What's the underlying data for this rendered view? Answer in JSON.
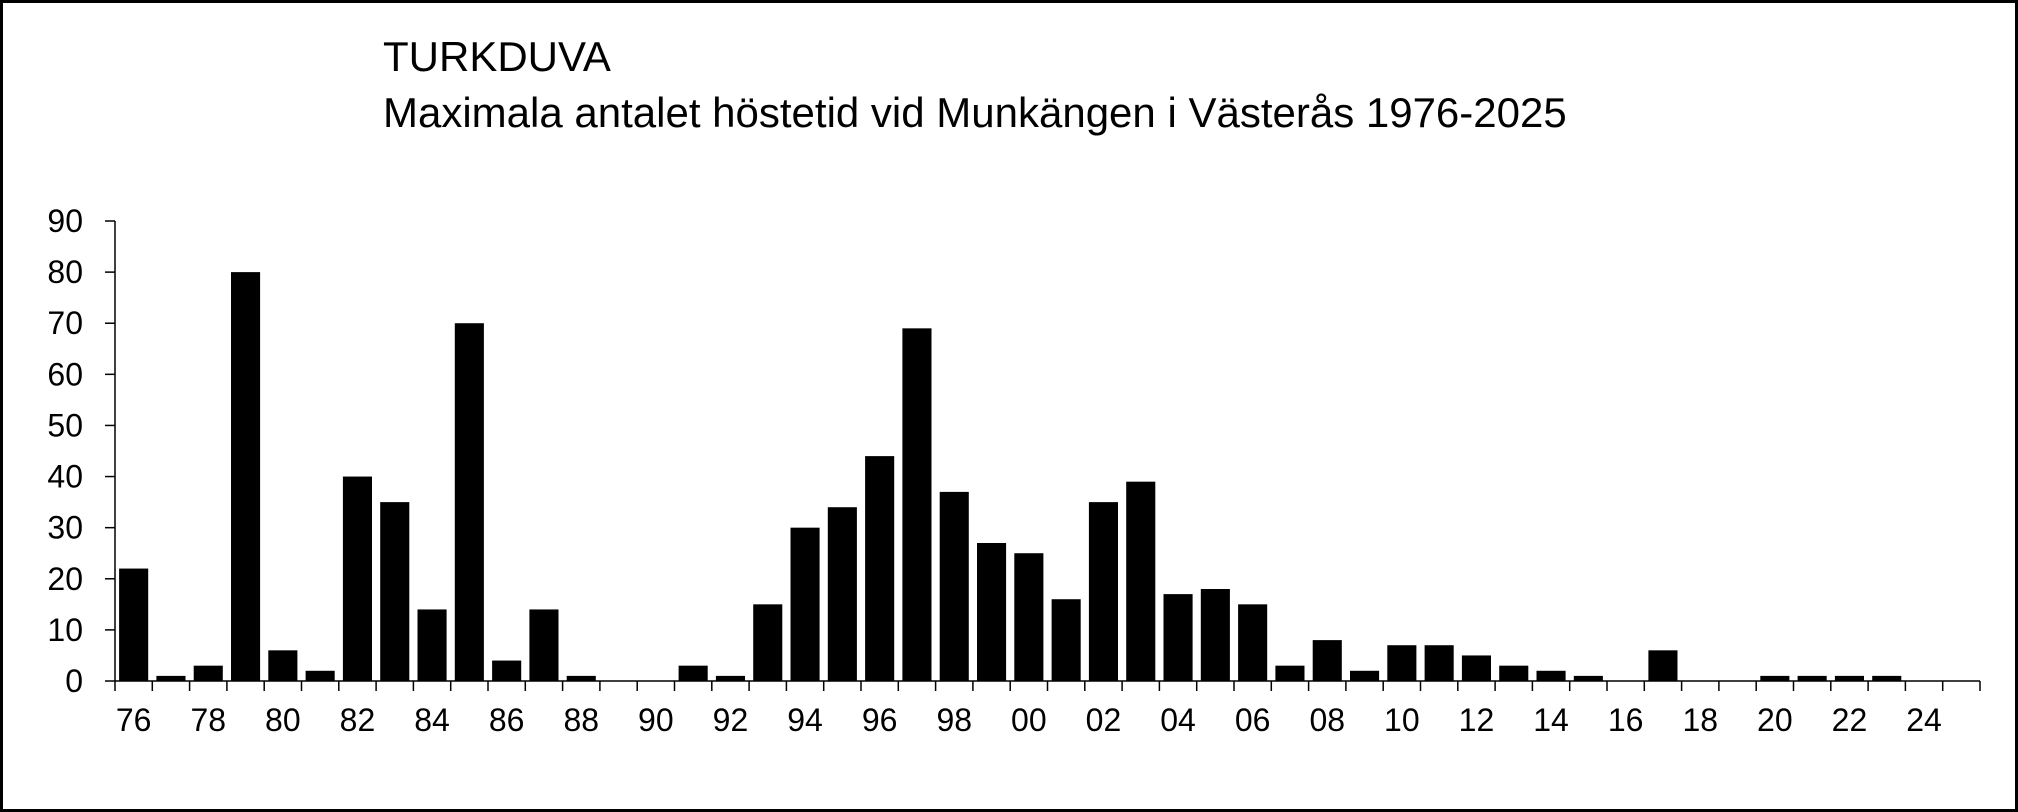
{
  "chart_data": {
    "type": "bar",
    "title": "TURKDUVA",
    "subtitle": "Maximala antalet höstetid vid Munkängen i Västerås 1976-2025",
    "xlabel": "",
    "ylabel": "",
    "ylim": [
      0,
      90
    ],
    "yticks": [
      0,
      10,
      20,
      30,
      40,
      50,
      60,
      70,
      80,
      90
    ],
    "categories": [
      "76",
      "77",
      "78",
      "79",
      "80",
      "81",
      "82",
      "83",
      "84",
      "85",
      "86",
      "87",
      "88",
      "89",
      "90",
      "91",
      "92",
      "93",
      "94",
      "95",
      "96",
      "97",
      "98",
      "99",
      "00",
      "01",
      "02",
      "03",
      "04",
      "05",
      "06",
      "07",
      "08",
      "09",
      "10",
      "11",
      "12",
      "13",
      "14",
      "15",
      "16",
      "17",
      "18",
      "19",
      "20",
      "21",
      "22",
      "23",
      "24",
      "25"
    ],
    "xtick_labels": [
      "76",
      "78",
      "80",
      "82",
      "84",
      "86",
      "88",
      "90",
      "92",
      "94",
      "96",
      "98",
      "00",
      "02",
      "04",
      "06",
      "08",
      "10",
      "12",
      "14",
      "16",
      "18",
      "20",
      "22",
      "24"
    ],
    "values": [
      22,
      1,
      3,
      80,
      6,
      2,
      40,
      35,
      14,
      70,
      4,
      14,
      1,
      0,
      0,
      3,
      1,
      15,
      30,
      34,
      44,
      69,
      37,
      27,
      25,
      16,
      35,
      39,
      17,
      18,
      15,
      3,
      8,
      2,
      7,
      7,
      5,
      3,
      2,
      1,
      0,
      6,
      0,
      0,
      1,
      1,
      1,
      1,
      0,
      0
    ],
    "bar_color": "#000000",
    "grid": false,
    "legend": false
  }
}
